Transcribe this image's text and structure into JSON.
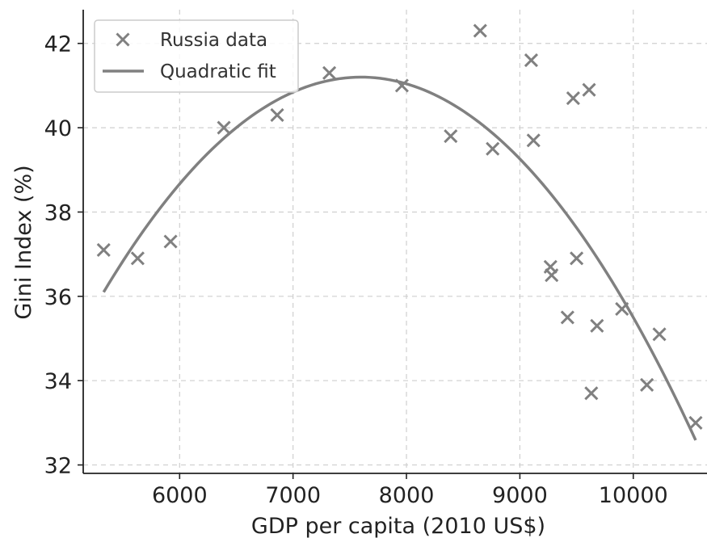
{
  "chart_data": {
    "type": "scatter",
    "xlabel": "GDP per capita (2010 US$)",
    "ylabel": "Gini Index (%)",
    "xlim": [
      5150,
      10650
    ],
    "ylim": [
      31.8,
      42.8
    ],
    "xticks": [
      6000,
      7000,
      8000,
      9000,
      10000
    ],
    "yticks": [
      32,
      34,
      36,
      38,
      40,
      42
    ],
    "grid": true,
    "legend_position": "top-left",
    "series": [
      {
        "name": "Russia data",
        "kind": "scatter",
        "marker": "x",
        "color": "#808080",
        "points": [
          [
            5330,
            37.1
          ],
          [
            5630,
            36.9
          ],
          [
            5920,
            37.3
          ],
          [
            6390,
            40.0
          ],
          [
            6860,
            40.3
          ],
          [
            7320,
            41.3
          ],
          [
            7960,
            41.0
          ],
          [
            8390,
            39.8
          ],
          [
            8650,
            42.3
          ],
          [
            8760,
            39.5
          ],
          [
            9100,
            41.6
          ],
          [
            9120,
            39.7
          ],
          [
            9270,
            36.7
          ],
          [
            9280,
            36.5
          ],
          [
            9420,
            35.5
          ],
          [
            9470,
            40.7
          ],
          [
            9500,
            36.9
          ],
          [
            9610,
            40.9
          ],
          [
            9630,
            33.7
          ],
          [
            9680,
            35.3
          ],
          [
            9900,
            35.7
          ],
          [
            10120,
            33.9
          ],
          [
            10230,
            35.1
          ],
          [
            10550,
            33.0
          ]
        ]
      },
      {
        "name": "Quadratic fit",
        "kind": "line",
        "color": "#808080",
        "x_range": [
          5330,
          10550
        ],
        "vertex": [
          7600,
          41.2
        ],
        "y_start": 36.1
      }
    ]
  }
}
